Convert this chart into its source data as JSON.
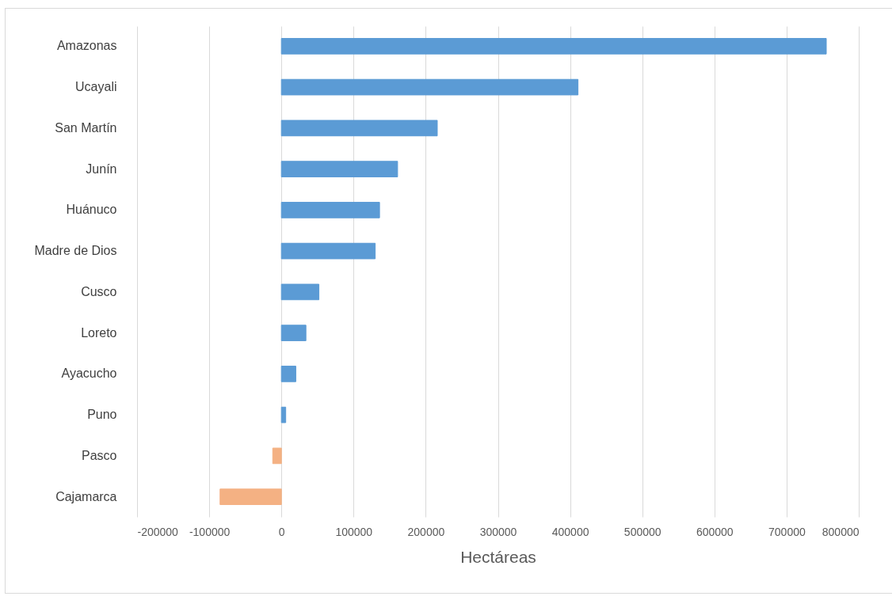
{
  "chart_data": {
    "type": "bar",
    "orientation": "horizontal",
    "xlabel": "Hectáreas",
    "categories": [
      "Amazonas",
      "Ucayali",
      "San Martín",
      "Junín",
      "Huánuco",
      "Madre de Dios",
      "Cusco",
      "Loreto",
      "Ayacucho",
      "Puno",
      "Pasco",
      "Cajamarca"
    ],
    "values": [
      755000,
      411000,
      216000,
      161000,
      136000,
      130000,
      52000,
      34000,
      20000,
      6000,
      -12000,
      -85000
    ],
    "colors": [
      "#5b9bd5",
      "#5b9bd5",
      "#5b9bd5",
      "#5b9bd5",
      "#5b9bd5",
      "#5b9bd5",
      "#5b9bd5",
      "#5b9bd5",
      "#5b9bd5",
      "#5b9bd5",
      "#f4b183",
      "#f4b183"
    ],
    "xlim": [
      -200000,
      800000
    ],
    "xticks": [
      -200000,
      -100000,
      0,
      100000,
      200000,
      300000,
      400000,
      500000,
      600000,
      700000,
      800000
    ],
    "grid": "x"
  }
}
